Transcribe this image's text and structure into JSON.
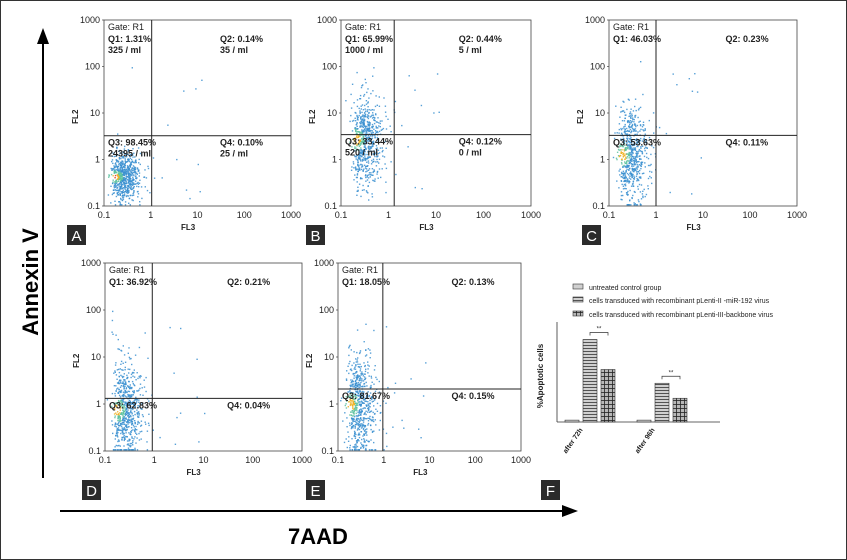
{
  "figure": {
    "y_axis_label": "Annexin V",
    "x_axis_label": "7AAD"
  },
  "panel_common": {
    "x_axis_title": "FL3",
    "y_axis_title": "FL2",
    "ticks": [
      "0.1",
      "1",
      "10",
      "100",
      "1000"
    ],
    "gate": "Gate: R1"
  },
  "panels": [
    {
      "id": "A",
      "letter": "A",
      "q1": "Q1: 1.31%",
      "q1_count": "325 / ml",
      "q2": "Q2: 0.14%",
      "q2_count": "35 / ml",
      "q3": "Q3: 98.45%",
      "q3_count": "24395 / ml",
      "q4": "Q4: 0.10%",
      "q4_count": "25 / ml",
      "y_title": "FL2"
    },
    {
      "id": "B",
      "letter": "B",
      "q1": "Q1: 65.99%",
      "q1_count": "1000 / ml",
      "q2": "Q2: 0.44%",
      "q2_count": "5 / ml",
      "q3": "Q3: 33.44%",
      "q3_count": "520 / ml",
      "q4": "Q4: 0.12%",
      "q4_count": "0 / ml",
      "y_title": "FL2"
    },
    {
      "id": "C",
      "letter": "C",
      "q1": "Q1: 46.03%",
      "q1_count": "",
      "q2": "Q2: 0.23%",
      "q2_count": "",
      "q3": "Q3: 53.63%",
      "q3_count": "",
      "q4": "Q4: 0.11%",
      "q4_count": "",
      "y_title": "FL2"
    },
    {
      "id": "D",
      "letter": "D",
      "q1": "Q1: 36.92%",
      "q1_count": "",
      "q2": "Q2: 0.21%",
      "q2_count": "",
      "q3": "Q3: 62.83%",
      "q3_count": "",
      "q4": "Q4: 0.04%",
      "q4_count": "",
      "y_title": "FL2"
    },
    {
      "id": "E",
      "letter": "E",
      "q1": "Q1: 18.05%",
      "q1_count": "",
      "q2": "Q2: 0.13%",
      "q2_count": "",
      "q3": "Q3: 81.67%",
      "q3_count": "",
      "q4": "Q4: 0.15%",
      "q4_count": "",
      "y_title": "FL2"
    }
  ],
  "bar_panel_letter": "F",
  "colors": {
    "scatter_main": "#3a8fd0",
    "scatter_core": "#5cc2a0",
    "scatter_hot": "#f0b020",
    "scatter_peak": "#e03010",
    "bar_fill": "#c8c8c8",
    "letter_bg": "#2b2b2b"
  },
  "chart_data": {
    "type": "bar",
    "ylabel": "%Apoptotic cells",
    "categories": [
      "after 72h",
      "after 96h"
    ],
    "series": [
      {
        "name": "untreated control group",
        "values": [
          1.5,
          1.5
        ],
        "pattern": "plain"
      },
      {
        "name": "cells transduced with recombinant pLenti-II -miR-192 virus",
        "values": [
          66,
          31
        ],
        "pattern": "horizontal-lines"
      },
      {
        "name": "cells transduced with recombinant pLenti-III-backbone virus",
        "values": [
          42,
          19
        ],
        "pattern": "grid"
      }
    ],
    "ylim": [
      0,
      80
    ],
    "significance": [
      {
        "category": "after 72h",
        "label": "**"
      },
      {
        "category": "after 96h",
        "label": "**"
      }
    ],
    "legend_position": "top"
  }
}
